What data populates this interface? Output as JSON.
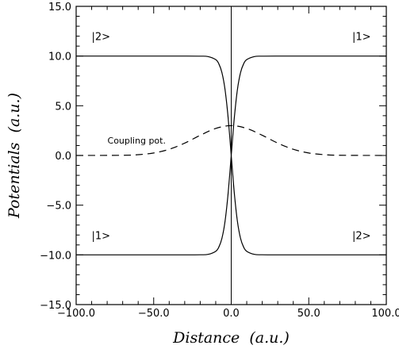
{
  "chart_data": {
    "type": "line",
    "title": "",
    "xlabel": "Distance  (a.u.)",
    "ylabel": "Potentials  (a.u.)",
    "xlim": [
      -100,
      100
    ],
    "ylim": [
      -15,
      15
    ],
    "x_ticks": [
      -100,
      -50,
      0,
      50,
      100
    ],
    "x_tick_labels": [
      "−100.0",
      "−50.0",
      "0.0",
      "50.0",
      "100.0"
    ],
    "y_ticks": [
      -15,
      -10,
      -5,
      0,
      5,
      10,
      15
    ],
    "y_tick_labels": [
      "−15.0",
      "−10.0",
      "−5.0",
      "0.0",
      "5.0",
      "10.0",
      "15.0"
    ],
    "grid": false,
    "reference_line_x": 0,
    "series": [
      {
        "style": "solid",
        "x": [
          -100,
          -50,
          -30,
          -20,
          -15,
          -10,
          -8,
          -6,
          -4,
          -2,
          0,
          2,
          4,
          6,
          8,
          10,
          15,
          20,
          30,
          50,
          100
        ],
        "y": [
          10,
          10,
          10,
          9.99,
          9.95,
          9.64,
          9.22,
          8.34,
          6.64,
          3.8,
          0,
          -3.8,
          -6.64,
          -8.34,
          -9.22,
          -9.64,
          -9.95,
          -9.99,
          -10,
          -10,
          -10
        ]
      },
      {
        "style": "solid",
        "x": [
          -100,
          -50,
          -30,
          -20,
          -15,
          -10,
          -8,
          -6,
          -4,
          -2,
          0,
          2,
          4,
          6,
          8,
          10,
          15,
          20,
          30,
          50,
          100
        ],
        "y": [
          -10,
          -10,
          -10,
          -9.99,
          -9.95,
          -9.64,
          -9.22,
          -8.34,
          -6.64,
          -3.8,
          0,
          3.8,
          6.64,
          8.34,
          9.22,
          9.64,
          9.95,
          9.99,
          10,
          10,
          10
        ]
      },
      {
        "name": "Coupling pot.",
        "style": "dashed",
        "x": [
          -100,
          -70,
          -60,
          -50,
          -40,
          -30,
          -20,
          -10,
          0,
          10,
          20,
          30,
          40,
          50,
          60,
          70,
          100
        ],
        "y": [
          0,
          0.02,
          0.08,
          0.25,
          0.62,
          1.24,
          2.03,
          2.72,
          3.0,
          2.72,
          2.03,
          1.24,
          0.62,
          0.25,
          0.08,
          0.02,
          0
        ]
      }
    ],
    "annotations": [
      {
        "text": "|2>",
        "x": -84,
        "y": 11.6,
        "size": "normal"
      },
      {
        "text": "|1>",
        "x": 84,
        "y": 11.6,
        "size": "normal"
      },
      {
        "text": "|1>",
        "x": -84,
        "y": -8.4,
        "size": "normal"
      },
      {
        "text": "|2>",
        "x": 84,
        "y": -8.4,
        "size": "normal"
      },
      {
        "text": "Coupling pot.",
        "x": -61,
        "y": 1.2,
        "size": "small"
      }
    ]
  }
}
